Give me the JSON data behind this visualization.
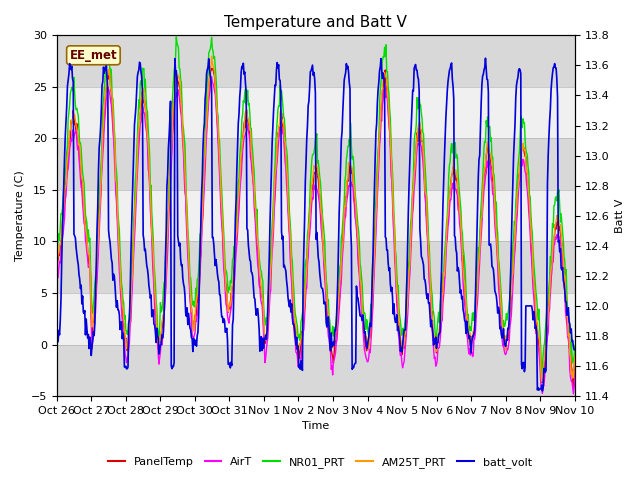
{
  "title": "Temperature and Batt V",
  "xlabel": "Time",
  "ylabel_left": "Temperature (C)",
  "ylabel_right": "Batt V",
  "annotation": "EE_met",
  "ylim_left": [
    -5,
    30
  ],
  "ylim_right": [
    11.4,
    13.8
  ],
  "x_tick_labels": [
    "Oct 26",
    "Oct 27",
    "Oct 28",
    "Oct 29",
    "Oct 30",
    "Oct 31",
    "Nov 1",
    "Nov 2",
    "Nov 3",
    "Nov 4",
    "Nov 5",
    "Nov 6",
    "Nov 7",
    "Nov 8",
    "Nov 9",
    "Nov 10"
  ],
  "legend_labels": [
    "PanelTemp",
    "AirT",
    "NR01_PRT",
    "AM25T_PRT",
    "batt_volt"
  ],
  "legend_colors": [
    "#dd0000",
    "#ff00ff",
    "#00dd00",
    "#ff9900",
    "#0000dd"
  ],
  "line_widths": [
    1.0,
    1.0,
    1.0,
    1.0,
    1.2
  ],
  "band_colors": [
    "#e8e8e8",
    "#f8f8f8"
  ],
  "title_fontsize": 11,
  "axis_fontsize": 8,
  "tick_fontsize": 8,
  "n_points": 720,
  "annotation_facecolor": "#ffffcc",
  "annotation_edgecolor": "#996600",
  "annotation_textcolor": "#660000"
}
